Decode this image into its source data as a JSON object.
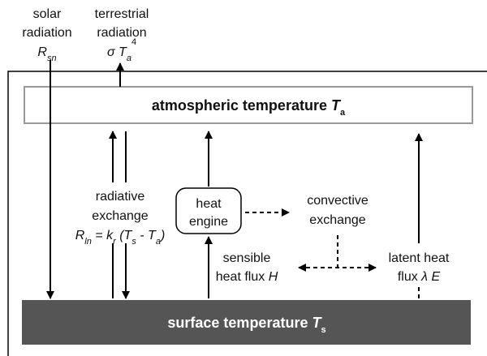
{
  "inputs": {
    "solar": {
      "lines": [
        "solar",
        "radiation"
      ],
      "symbol": "R",
      "subscript": "sn"
    },
    "terrestrial": {
      "lines": [
        "terrestrial",
        "radiation"
      ],
      "symbol": "σ T",
      "subscript": "a",
      "superscript": "4"
    }
  },
  "atmosphere": {
    "label": "atmospheric temperature ",
    "symbol": "T",
    "subscript": "a"
  },
  "surface": {
    "label": "surface temperature ",
    "symbol": "T",
    "subscript": "s"
  },
  "radiative_exchange": {
    "lines": [
      "radiative",
      "exchange"
    ],
    "formula": [
      "R",
      "ln",
      " = k",
      "r",
      " (T",
      "s",
      " - T",
      "a",
      ")"
    ]
  },
  "heat_engine": [
    "heat",
    "engine"
  ],
  "convective_exchange": [
    "convective",
    "exchange"
  ],
  "sensible_heat_flux": {
    "lines": [
      "sensible",
      "heat flux "
    ],
    "symbol": "H"
  },
  "latent_heat_flux": {
    "lines": [
      "latent heat",
      "flux "
    ],
    "symbol": "λ E"
  }
}
